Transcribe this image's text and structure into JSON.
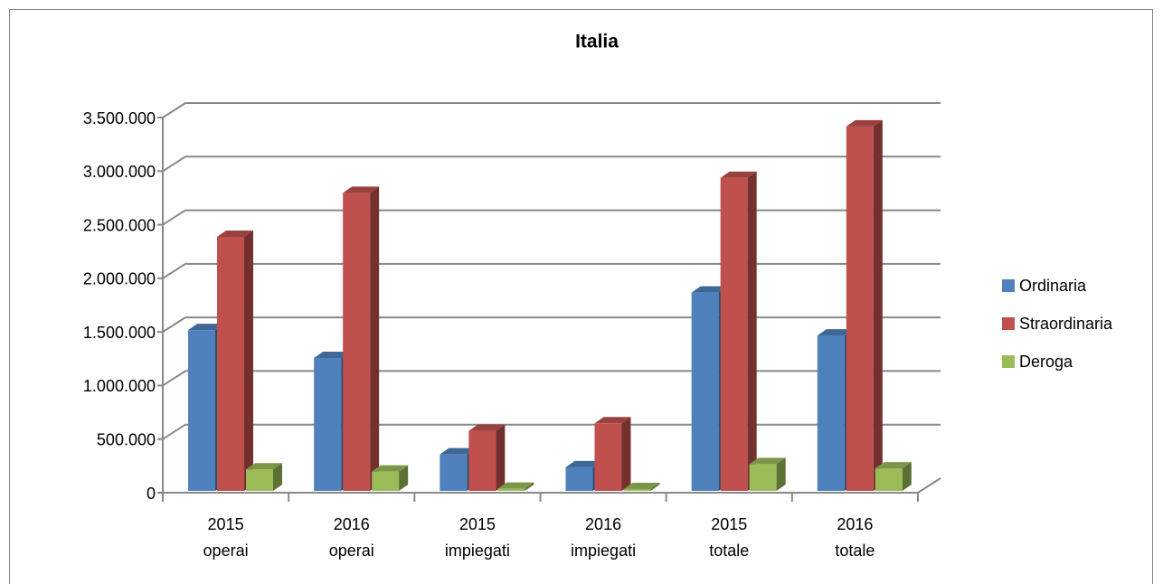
{
  "chart_data": {
    "type": "bar3d",
    "title": "Italia",
    "categories": [
      "2015 operai",
      "2016 operai",
      "2015 impiegati",
      "2016 impiegati",
      "2015 totale",
      "2016 totale"
    ],
    "series": [
      {
        "name": "Ordinaria",
        "color": "#4f81bd",
        "values": [
          1500000,
          1240000,
          340000,
          220000,
          1850000,
          1450000
        ]
      },
      {
        "name": "Straordinaria",
        "color": "#c0504d",
        "values": [
          2370000,
          2780000,
          560000,
          630000,
          2920000,
          3400000
        ]
      },
      {
        "name": "Deroga",
        "color": "#9bbb59",
        "values": [
          200000,
          180000,
          20000,
          10000,
          250000,
          210000
        ]
      }
    ],
    "ylim": [
      0,
      3500000
    ],
    "yticks": [
      0,
      {
        "value": 500000,
        "label": "500.000"
      },
      {
        "value": 1000000,
        "label": "1.000.000"
      },
      {
        "value": 1500000,
        "label": "1.500.000"
      },
      {
        "value": 2000000,
        "label": "2.000.000"
      },
      {
        "value": 2500000,
        "label": "2.500.000"
      },
      {
        "value": 3000000,
        "label": "3.000.000"
      },
      {
        "value": 3500000,
        "label": "3.500.000"
      }
    ],
    "grid": true,
    "legend": "right"
  }
}
